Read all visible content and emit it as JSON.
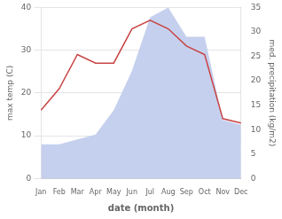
{
  "chart_data": {
    "type": "line",
    "xlabel": "date (month)",
    "ylabel": "max temp (C)",
    "y2label": "med. precipitation (kg/m2)",
    "categories": [
      "Jan",
      "Feb",
      "Mar",
      "Apr",
      "May",
      "Jun",
      "Jul",
      "Aug",
      "Sep",
      "Oct",
      "Nov",
      "Dec"
    ],
    "series": [
      {
        "type": "line",
        "color": "#c94444",
        "values": [
          16,
          21,
          29,
          27,
          27,
          35,
          37,
          35,
          31,
          29,
          14,
          13
        ]
      },
      {
        "type": "area",
        "color": "#c5d0ee",
        "axis": "y2",
        "values": [
          7,
          7,
          8,
          9,
          14,
          22,
          33,
          35,
          29,
          29,
          12,
          11
        ]
      }
    ],
    "ylim": [
      0,
      40
    ],
    "yticks": [
      0,
      10,
      20,
      30,
      40
    ],
    "y2lim": [
      0,
      35
    ],
    "y2ticks": [
      0,
      5,
      10,
      15,
      20,
      25,
      30,
      35
    ],
    "grid": true
  }
}
